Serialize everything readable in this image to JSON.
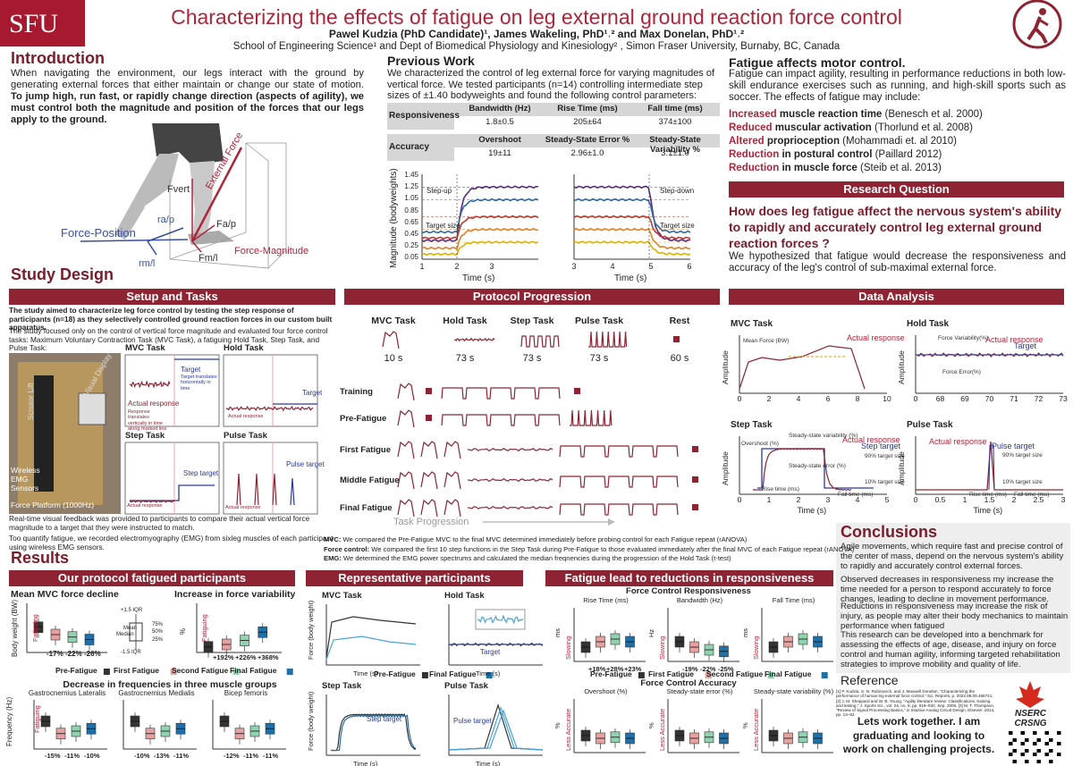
{
  "header": {
    "logo": "SFU",
    "title": "Characterizing the effects of fatigue on leg external ground reaction force control",
    "authors": "Pawel Kudzia (PhD Candidate)¹, James Wakeling, PhD¹˒² and Max Donelan, PhD¹˒²",
    "affiliation": "School of Engineering Science¹ and Dept of Biomedical Physiology and Kinesiology² , Simon Fraser University, Burnaby, BC, Canada"
  },
  "introduction": {
    "heading": "Introduction",
    "text": "When navigating the environment, our legs interact with the ground by generating external forces that either maintain or change our state of motion.",
    "emphasis": "To jump high, run fast, or rapidly change direction (aspects of agility), we must control both the magnitude and position of the forces that our legs apply to the ground.",
    "figure_labels": [
      "Fvert",
      "External Force",
      "Force-Position",
      "ra/p",
      "Fa/p",
      "Fm/l",
      "Force-Magnitude",
      "rm/l"
    ]
  },
  "previous_work": {
    "heading": "Previous Work",
    "text": "We characterized the control of leg external force for varying magnitudes of vertical force. We tested participants (n=14) controlling intermediate step sizes of ±1.40 bodyweights and found the following control parameters:",
    "responsiveness": {
      "label": "Responsiveness",
      "columns": [
        "Bandwidth (Hz)",
        "Rise Time (ms)",
        "Fall time (ms)"
      ],
      "values": [
        "1.8±0.5",
        "205±64",
        "374±100"
      ]
    },
    "accuracy": {
      "label": "Accuracy",
      "columns": [
        "Overshoot",
        "Steady-State Error %",
        "Steady-State Variability %"
      ],
      "values": [
        "19±11",
        "2.96±1.0",
        "3.1±1.0"
      ]
    },
    "plot": {
      "ylabel": "Magnitude (bodyweights)",
      "yticks": [
        "1.45",
        "1.25",
        "1.05",
        "0.85",
        "0.65",
        "0.45",
        "0.25",
        "0.05"
      ],
      "xlabel": "Time (s)",
      "left": {
        "xticks": [
          "1",
          "2",
          "3"
        ],
        "step": "Step-up",
        "target": "Target size"
      },
      "right": {
        "xticks": [
          "3",
          "4",
          "5",
          "6"
        ],
        "step": "Step-down",
        "target": "Target size"
      }
    }
  },
  "fatigue": {
    "heading": "Fatigue affects motor control.",
    "text": "Fatigue can impact agility, resulting in performance reductions in both low-skill endurance exercises such as running, and high-skill sports such as soccer. The effects of fatigue may include:",
    "effects": [
      {
        "change": "Increased",
        "factor": "muscle reaction time",
        "citation": "(Benesch et al. 2000)"
      },
      {
        "change": "Reduced",
        "factor": "muscular activation",
        "citation": "(Thorlund et al. 2008)"
      },
      {
        "change": "Altered",
        "factor": "proprioception",
        "citation": "(Mohammadi et. al 2010)"
      },
      {
        "change": "Reduction",
        "factor": "in postural control",
        "citation": "(Paillard 2012)"
      },
      {
        "change": "Reduction",
        "factor": "in muscle force",
        "citation": "(Steib et al. 2013)"
      }
    ]
  },
  "research_question": {
    "banner": "Research Question",
    "question": "How does leg fatigue affect the nervous system's ability to rapidly and accurately control leg external ground reaction forces ?",
    "hypothesis": "We hypothesized that fatigue would decrease the responsiveness and accuracy of the leg's control of sub-maximal external force."
  },
  "study_design": {
    "heading": "Study Design",
    "setup": {
      "banner": "Setup and Tasks",
      "aim": "The study aimed to characterize leg force control by testing the step response of participants (n=18) as they selectively controlled ground reaction forces in our custom built apparatus.",
      "focus": "The study focused only on the control of vertical force magnitude and evaluated four force control tasks: Maximum Voluntary Contraction Task (MVC Task), a fatiguing Hold Task, Step Task, and Pulse Task:",
      "photo_labels": [
        "Visual Display",
        "Scissor Lift",
        "Wireless EMG Sensors",
        "Force Platform (1000Hz)"
      ],
      "panels": [
        {
          "title": "MVC Task",
          "labels": [
            "Target",
            "Target translates horizontally in time",
            "Actual response",
            "Response translates vertically in time along marked line"
          ]
        },
        {
          "title": "Hold Task",
          "labels": [
            "Target",
            "Actual response"
          ]
        },
        {
          "title": "Step Task",
          "labels": [
            "Step target",
            "Actual response"
          ]
        },
        {
          "title": "Pulse Task",
          "labels": [
            "Pulse target",
            "Actual response"
          ]
        }
      ],
      "feedback": "Real-time visual feedback was provided to participants to compare their actual vertical force magnitude to a target that they were instructed to match.",
      "emg": "Too quantify fatigue, we recorded electromyography (EMG) from sixleg muscles of each participant using wireless EMG sensors."
    },
    "protocol": {
      "banner": "Protocol Progression",
      "tasks": [
        {
          "name": "MVC Task",
          "duration": "10 s"
        },
        {
          "name": "Hold Task",
          "duration": "73 s"
        },
        {
          "name": "Step Task",
          "duration": "73 s"
        },
        {
          "name": "Pulse Task",
          "duration": "73 s"
        },
        {
          "name": "Rest",
          "duration": "60 s"
        }
      ],
      "stages": [
        "Training",
        "Pre-Fatigue",
        "First Fatigue",
        "Middle Fatigue",
        "Final Fatigue"
      ],
      "progression": "Task Progression",
      "notes": [
        {
          "label": "MVC:",
          "text": "We compared the Pre-Fatigue MVC to the final MVC determined immediately before probing control for each Fatigue repeat (rANOVA)"
        },
        {
          "label": "Force control:",
          "text": "We compared the first 10 step functions in the Step Task during Pre-Fatigue to those evaluated immediately after the final MVC of each Fatigue repeat (rANOVA)"
        },
        {
          "label": "EMG:",
          "text": "We determined the EMG power spectrums and calculated the median freqnencies during the progression of the Hold Task (t-test)"
        }
      ]
    },
    "data_analysis": {
      "banner": "Data Analysis",
      "amplitude": "Amplitude",
      "xlabel": "Time (s)",
      "panels": [
        {
          "title": "MVC Task",
          "xticks": [
            "0",
            "2",
            "4",
            "6",
            "8",
            "10"
          ],
          "labels": [
            "Mean Force (BW)",
            "Actual response"
          ]
        },
        {
          "title": "Hold Task",
          "xticks": [
            "0",
            "68",
            "69",
            "70",
            "71",
            "72",
            "73"
          ],
          "labels": [
            "Force Variability(%)",
            "Actual response",
            "Target",
            "Force Error(%)"
          ]
        },
        {
          "title": "Step Task",
          "xticks": [
            "0",
            "1",
            "2",
            "3",
            "4",
            "5"
          ],
          "labels": [
            "Steady-state variability (%)",
            "Overshoot (%)",
            "Actual response",
            "Step target",
            "90% target size",
            "Steady-state error (%)",
            "10% target size",
            "Rise time (ms)",
            "Fall time (ms)"
          ]
        },
        {
          "title": "Pulse Task",
          "xticks": [
            "0",
            "0.5",
            "1",
            "1.5",
            "2",
            "2.5",
            "3"
          ],
          "labels": [
            "Actual response",
            "Pulse target",
            "90% target size",
            "10% target size",
            "Rise time (ms)",
            "Fall time (ms)"
          ]
        }
      ]
    }
  },
  "results": {
    "heading": "Results",
    "fatigued": {
      "banner": "Our protocol fatigued participants",
      "legend": [
        "Pre-Fatigue",
        "First Fatigue",
        "Second Fatigue",
        "Final Fatigue"
      ],
      "arrow": "Fatiguing",
      "mvc": {
        "title": "Mean MVC force decline",
        "ylabel": "Body weight (BW)",
        "changes": [
          "-17%",
          "-22%",
          "-26%"
        ]
      },
      "variability": {
        "title": "Increase in force variability",
        "ylabel": "%",
        "changes": [
          "+192%",
          "+226%",
          "+368%"
        ],
        "iqr_labels": [
          "+1.5 IQR",
          "Mean",
          "Median",
          "75%",
          "50%",
          "25%",
          "-1.5 IQR"
        ]
      },
      "frequency": {
        "title": "Decrease in frequencies in three muscle groups",
        "ylabel": "Frequency (Hz)",
        "muscles": [
          {
            "name": "Gastrocnemius Lateralis",
            "changes": [
              "-15%",
              "-11%",
              "-10%"
            ]
          },
          {
            "name": "Gastrocnemius Medialis",
            "changes": [
              "-10%",
              "-13%",
              "-11%"
            ]
          },
          {
            "name": "Bicep femoris",
            "changes": [
              "-12%",
              "-11%",
              "-11%"
            ]
          }
        ]
      }
    },
    "representative": {
      "banner": "Representative participants",
      "panels": [
        "MVC Task",
        "Hold Task",
        "Step Task",
        "Pulse Task"
      ],
      "ylabel": "Force (body weight)",
      "xlabel": "Time (s)",
      "target": "Target",
      "step_target": "Step target",
      "pulse_target": "Pulse target",
      "legend": [
        "Pre-Fatigue",
        "Final Fatigue"
      ]
    },
    "responsiveness": {
      "banner": "Fatigue lead to reductions in responsiveness",
      "responsiveness_title": "Force Control Responsiveness",
      "slowing": "Slowing",
      "less_accurate": "Less Accurate",
      "responsiveness_panels": [
        {
          "title": "Rise Time (ms)",
          "unit": "ms",
          "changes": [
            "+18%",
            "+28%",
            "+23%"
          ]
        },
        {
          "title": "Bandwidth (Hz)",
          "unit": "Hz",
          "changes": [
            "-19%",
            "-22%",
            "-25%"
          ]
        },
        {
          "title": "Fall Time (ms)",
          "unit": "ms"
        }
      ],
      "accuracy_title": "Force Control Accuracy",
      "accuracy_panels": [
        {
          "title": "Overshoot (%)",
          "unit": "%"
        },
        {
          "title": "Steady-state error (%)",
          "unit": "%"
        },
        {
          "title": "Steady-state variability (%)",
          "unit": "%"
        }
      ]
    }
  },
  "conclusions": {
    "heading": "Conclusions",
    "paragraphs": [
      "Agile movements, which require fast and precise control of the center of mass, depend on the nervous system's ability to rapidly and accurately control external forces.",
      "Observed decreases in responsiveness my increase the time needed for a person to respond accurately to force changes, leading to decline in movement performance.",
      "Reductions in responsiveness may increase the risk of injury, as people may alter their body mechanics to maintain performance when fatigued",
      "This research can be developed into a benchmark for assessing the effects of age, disease, and injury on force control and human agility, informing targeted rehabilitation strategies to improve mobility and quality of life."
    ]
  },
  "reference": {
    "heading": "Reference",
    "text": "[1] P. Kudzia, S. N. Robinovich, and J. Maxwell Donelan, \"Characterizing the performance of human leg external force control,\" Sci. Reports, p. 2022.08.09.455741, [2] J. M. Sheppard and W. B. Young, \"Agility literature review: Classifications, training and testing,\" J. Sports Sci., vol. 24, no. 9, pp. 919–932, Sep. 2006. [3] M. T. Thompson, \"Review of Signal Processing Basics,\" in Intuitive Analog Circuit Design, Elsevier, 2014, pp. 13–52."
  },
  "sponsor": {
    "name": "NSERC",
    "name_fr": "CRSNG"
  },
  "call_to_action": "Lets work together. I am graduating and looking to work on challenging projects."
}
